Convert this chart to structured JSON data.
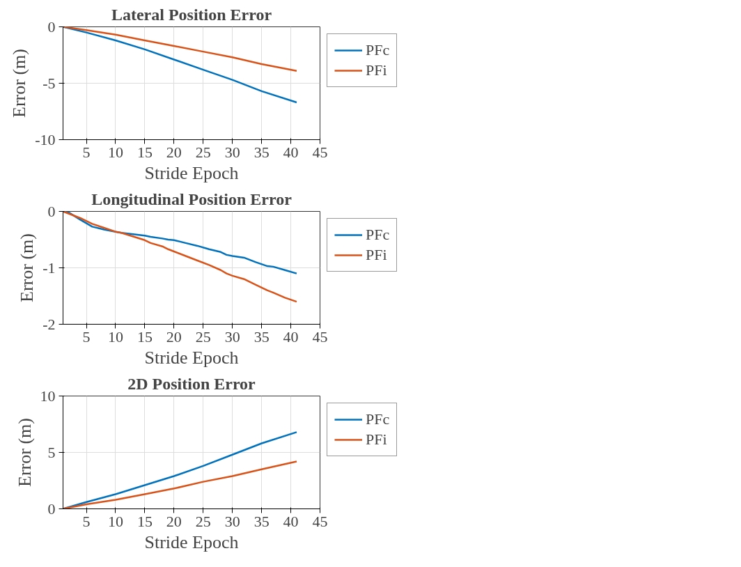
{
  "chart_data": [
    {
      "type": "line",
      "title": "Lateral Position Error",
      "xlabel": "Stride Epoch",
      "ylabel": "Error (m)",
      "xlim": [
        1,
        45
      ],
      "xticks": [
        5,
        10,
        15,
        20,
        25,
        30,
        35,
        40,
        45
      ],
      "ylim": [
        -10,
        0
      ],
      "yticks": [
        -10,
        -5,
        0
      ],
      "grid": true,
      "legend": "top right",
      "line_style": "solid",
      "marker": "none",
      "x": [
        1,
        5,
        10,
        15,
        20,
        25,
        30,
        35,
        41
      ],
      "series": [
        {
          "name": "PFc",
          "color": "#0072bd",
          "values": [
            0,
            -0.5,
            -1.2,
            -2.0,
            -2.9,
            -3.8,
            -4.7,
            -5.7,
            -6.7
          ]
        },
        {
          "name": "PFi",
          "color": "#d95319",
          "values": [
            0,
            -0.3,
            -0.7,
            -1.2,
            -1.7,
            -2.2,
            -2.7,
            -3.3,
            -3.9
          ]
        }
      ]
    },
    {
      "type": "line",
      "title": "Longitudinal Position Error",
      "xlabel": "Stride Epoch",
      "ylabel": "Error (m)",
      "xlim": [
        1,
        45
      ],
      "xticks": [
        5,
        10,
        15,
        20,
        25,
        30,
        35,
        40,
        45
      ],
      "ylim": [
        -2,
        0
      ],
      "yticks": [
        -2,
        -1,
        0
      ],
      "grid": true,
      "legend": "top right",
      "line_style": "solid",
      "marker": "none",
      "x": [
        1,
        2,
        4,
        6,
        8,
        10,
        11,
        15,
        16,
        18,
        19,
        20,
        22,
        24,
        26,
        28,
        29,
        30,
        32,
        34,
        36,
        37,
        39,
        41
      ],
      "series": [
        {
          "name": "PFc",
          "color": "#0072bd",
          "values": [
            0,
            -0.02,
            -0.15,
            -0.27,
            -0.32,
            -0.36,
            -0.38,
            -0.43,
            -0.45,
            -0.48,
            -0.5,
            -0.51,
            -0.56,
            -0.61,
            -0.67,
            -0.72,
            -0.77,
            -0.79,
            -0.82,
            -0.9,
            -0.97,
            -0.98,
            -1.04,
            -1.1
          ]
        },
        {
          "name": "PFi",
          "color": "#d95319",
          "values": [
            0,
            -0.04,
            -0.12,
            -0.22,
            -0.29,
            -0.36,
            -0.38,
            -0.51,
            -0.56,
            -0.62,
            -0.67,
            -0.71,
            -0.79,
            -0.87,
            -0.95,
            -1.04,
            -1.1,
            -1.14,
            -1.2,
            -1.3,
            -1.4,
            -1.44,
            -1.53,
            -1.6
          ]
        }
      ]
    },
    {
      "type": "line",
      "title": "2D Position Error",
      "xlabel": "Stride Epoch",
      "ylabel": "Error (m)",
      "xlim": [
        1,
        45
      ],
      "xticks": [
        5,
        10,
        15,
        20,
        25,
        30,
        35,
        40,
        45
      ],
      "ylim": [
        0,
        10
      ],
      "yticks": [
        0,
        5,
        10
      ],
      "grid": true,
      "legend": "top right",
      "line_style": "solid",
      "marker": "none",
      "x": [
        1,
        5,
        10,
        15,
        20,
        25,
        30,
        35,
        41
      ],
      "series": [
        {
          "name": "PFc",
          "color": "#0072bd",
          "values": [
            0,
            0.6,
            1.3,
            2.1,
            2.9,
            3.8,
            4.8,
            5.8,
            6.8
          ]
        },
        {
          "name": "PFi",
          "color": "#d95319",
          "values": [
            0,
            0.4,
            0.8,
            1.3,
            1.8,
            2.4,
            2.9,
            3.5,
            4.2
          ]
        }
      ]
    }
  ]
}
